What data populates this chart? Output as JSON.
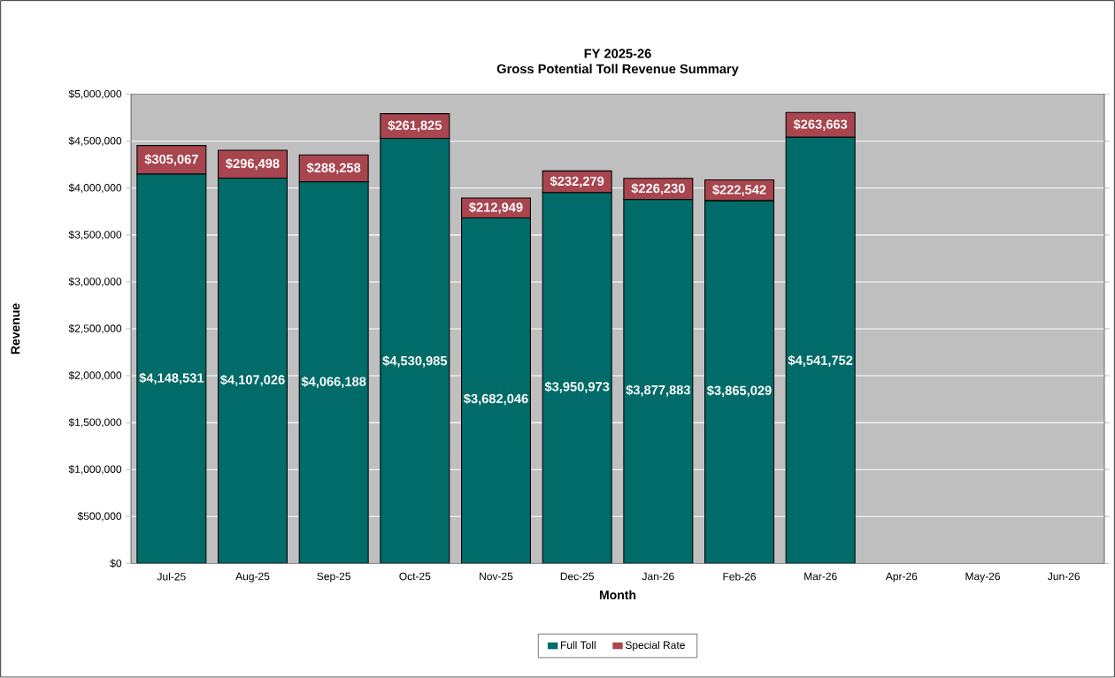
{
  "chart_data": {
    "type": "bar",
    "stacked": true,
    "title": "FY 2025-26",
    "subtitle": "Gross Potential Toll Revenue Summary",
    "xlabel": "Month",
    "ylabel": "Revenue",
    "categories": [
      "Jul-25",
      "Aug-25",
      "Sep-25",
      "Oct-25",
      "Nov-25",
      "Dec-25",
      "Jan-26",
      "Feb-26",
      "Mar-26",
      "Apr-26",
      "May-26",
      "Jun-26"
    ],
    "series": [
      {
        "name": "Full Toll",
        "color": "#006b68",
        "values": [
          4148531,
          4107026,
          4066188,
          4530985,
          3682046,
          3950973,
          3877883,
          3865029,
          4541752,
          null,
          null,
          null
        ],
        "value_labels": [
          "$4,148,531",
          "$4,107,026",
          "$4,066,188",
          "$4,530,985",
          "$3,682,046",
          "$3,950,973",
          "$3,877,883",
          "$3,865,029",
          "$4,541,752",
          null,
          null,
          null
        ]
      },
      {
        "name": "Special Rate",
        "color": "#a8454f",
        "values": [
          305067,
          296498,
          288258,
          261825,
          212949,
          232279,
          226230,
          222542,
          263663,
          null,
          null,
          null
        ],
        "value_labels": [
          "$305,067",
          "$296,498",
          "$288,258",
          "$261,825",
          "$212,949",
          "$232,279",
          "$226,230",
          "$222,542",
          "$263,663",
          null,
          null,
          null
        ]
      }
    ],
    "ylim": [
      0,
      5000000
    ],
    "yticks": [
      {
        "value": 0,
        "label": "$0"
      },
      {
        "value": 500000,
        "label": "$500,000"
      },
      {
        "value": 1000000,
        "label": "$1,000,000"
      },
      {
        "value": 1500000,
        "label": "$1,500,000"
      },
      {
        "value": 2000000,
        "label": "$2,000,000"
      },
      {
        "value": 2500000,
        "label": "$2,500,000"
      },
      {
        "value": 3000000,
        "label": "$3,000,000"
      },
      {
        "value": 3500000,
        "label": "$3,500,000"
      },
      {
        "value": 4000000,
        "label": "$4,000,000"
      },
      {
        "value": 4500000,
        "label": "$4,500,000"
      },
      {
        "value": 5000000,
        "label": "$5,000,000"
      }
    ],
    "grid": "y",
    "legend": "bottom"
  }
}
